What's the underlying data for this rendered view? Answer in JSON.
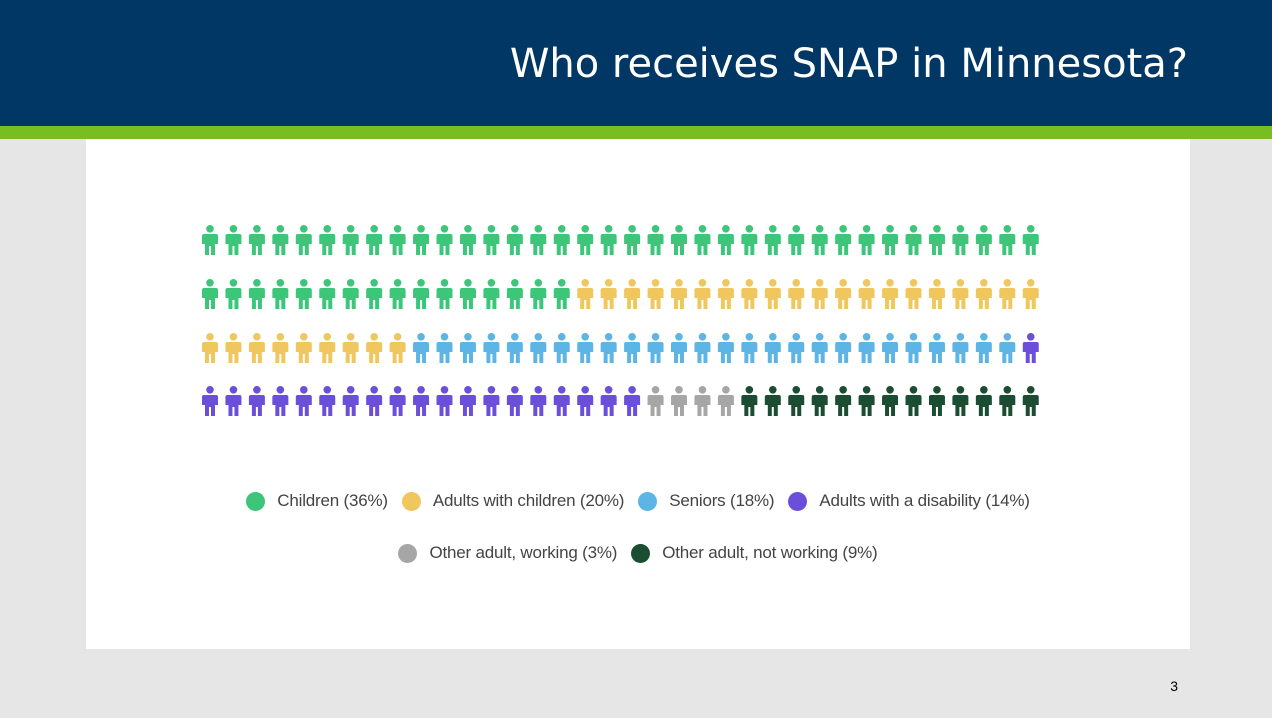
{
  "header": {
    "title": "Who receives SNAP in Minnesota?"
  },
  "colors": {
    "header_background": "#003764",
    "accent_bar": "#78be21",
    "panel_background": "#ffffff",
    "page_background": "#e6e6e6"
  },
  "chart_data": {
    "type": "pictograph",
    "unit": "person-icon",
    "total_icons": 144,
    "icons_per_row": 36,
    "rows": 4,
    "series": [
      {
        "name": "Children (36%)",
        "count": 52,
        "color": "#3dc57a"
      },
      {
        "name": "Adults with children (20%)",
        "count": 29,
        "color": "#f0c75e"
      },
      {
        "name": "Seniors (18%)",
        "count": 26,
        "color": "#5cb5e5"
      },
      {
        "name": "Adults with a disability (14%)",
        "count": 20,
        "color": "#6b4fdb"
      },
      {
        "name": "Other adult, working (3%)",
        "count": 4,
        "color": "#a6a6a6"
      },
      {
        "name": "Other adult, not working (9%)",
        "count": 13,
        "color": "#1b4d33"
      }
    ],
    "legend_rows": [
      [
        0,
        1,
        2,
        3
      ],
      [
        4,
        5
      ]
    ]
  },
  "page_number": "3"
}
